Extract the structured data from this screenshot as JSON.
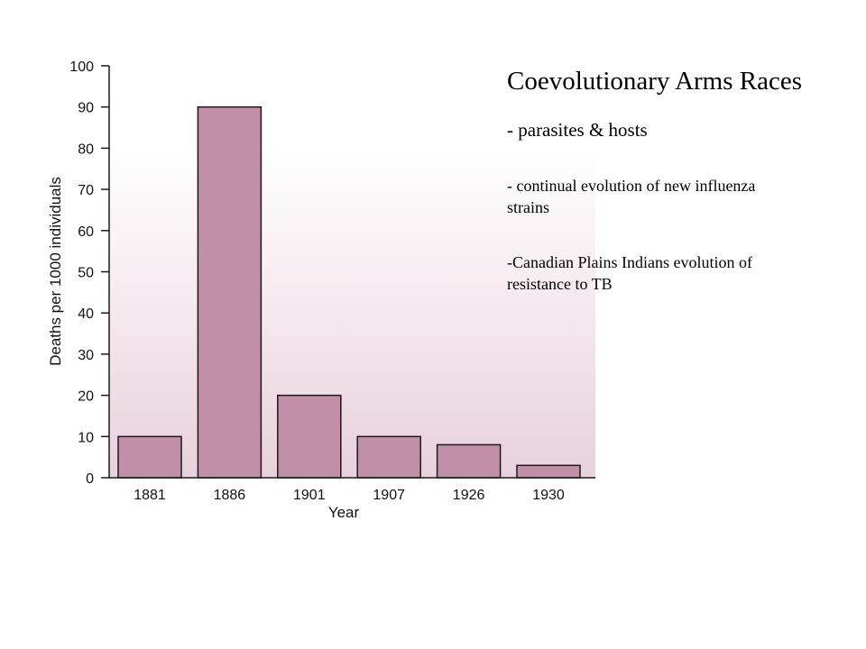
{
  "slide": {
    "title": "Coevolutionary Arms Races",
    "bullets": [
      "- parasites & hosts",
      "- continual evolution of new influenza strains",
      "-Canadian Plains Indians evolution of resistance to TB"
    ]
  },
  "colors": {
    "bar_fill": "#c190a8",
    "bar_stroke": "#1a1a1a",
    "plot_gradient_top": "#ffffff",
    "plot_gradient_bottom": "#e8d1dc"
  },
  "chart_data": {
    "type": "bar",
    "categories": [
      "1881",
      "1886",
      "1901",
      "1907",
      "1926",
      "1930"
    ],
    "values": [
      10,
      90,
      20,
      10,
      8,
      3
    ],
    "xlabel": "Year",
    "ylabel": "Deaths per 1000 individuals",
    "ylim": [
      0,
      100
    ],
    "yticks": [
      0,
      10,
      20,
      30,
      40,
      50,
      60,
      70,
      80,
      90,
      100
    ],
    "grid": false,
    "legend": "none"
  }
}
